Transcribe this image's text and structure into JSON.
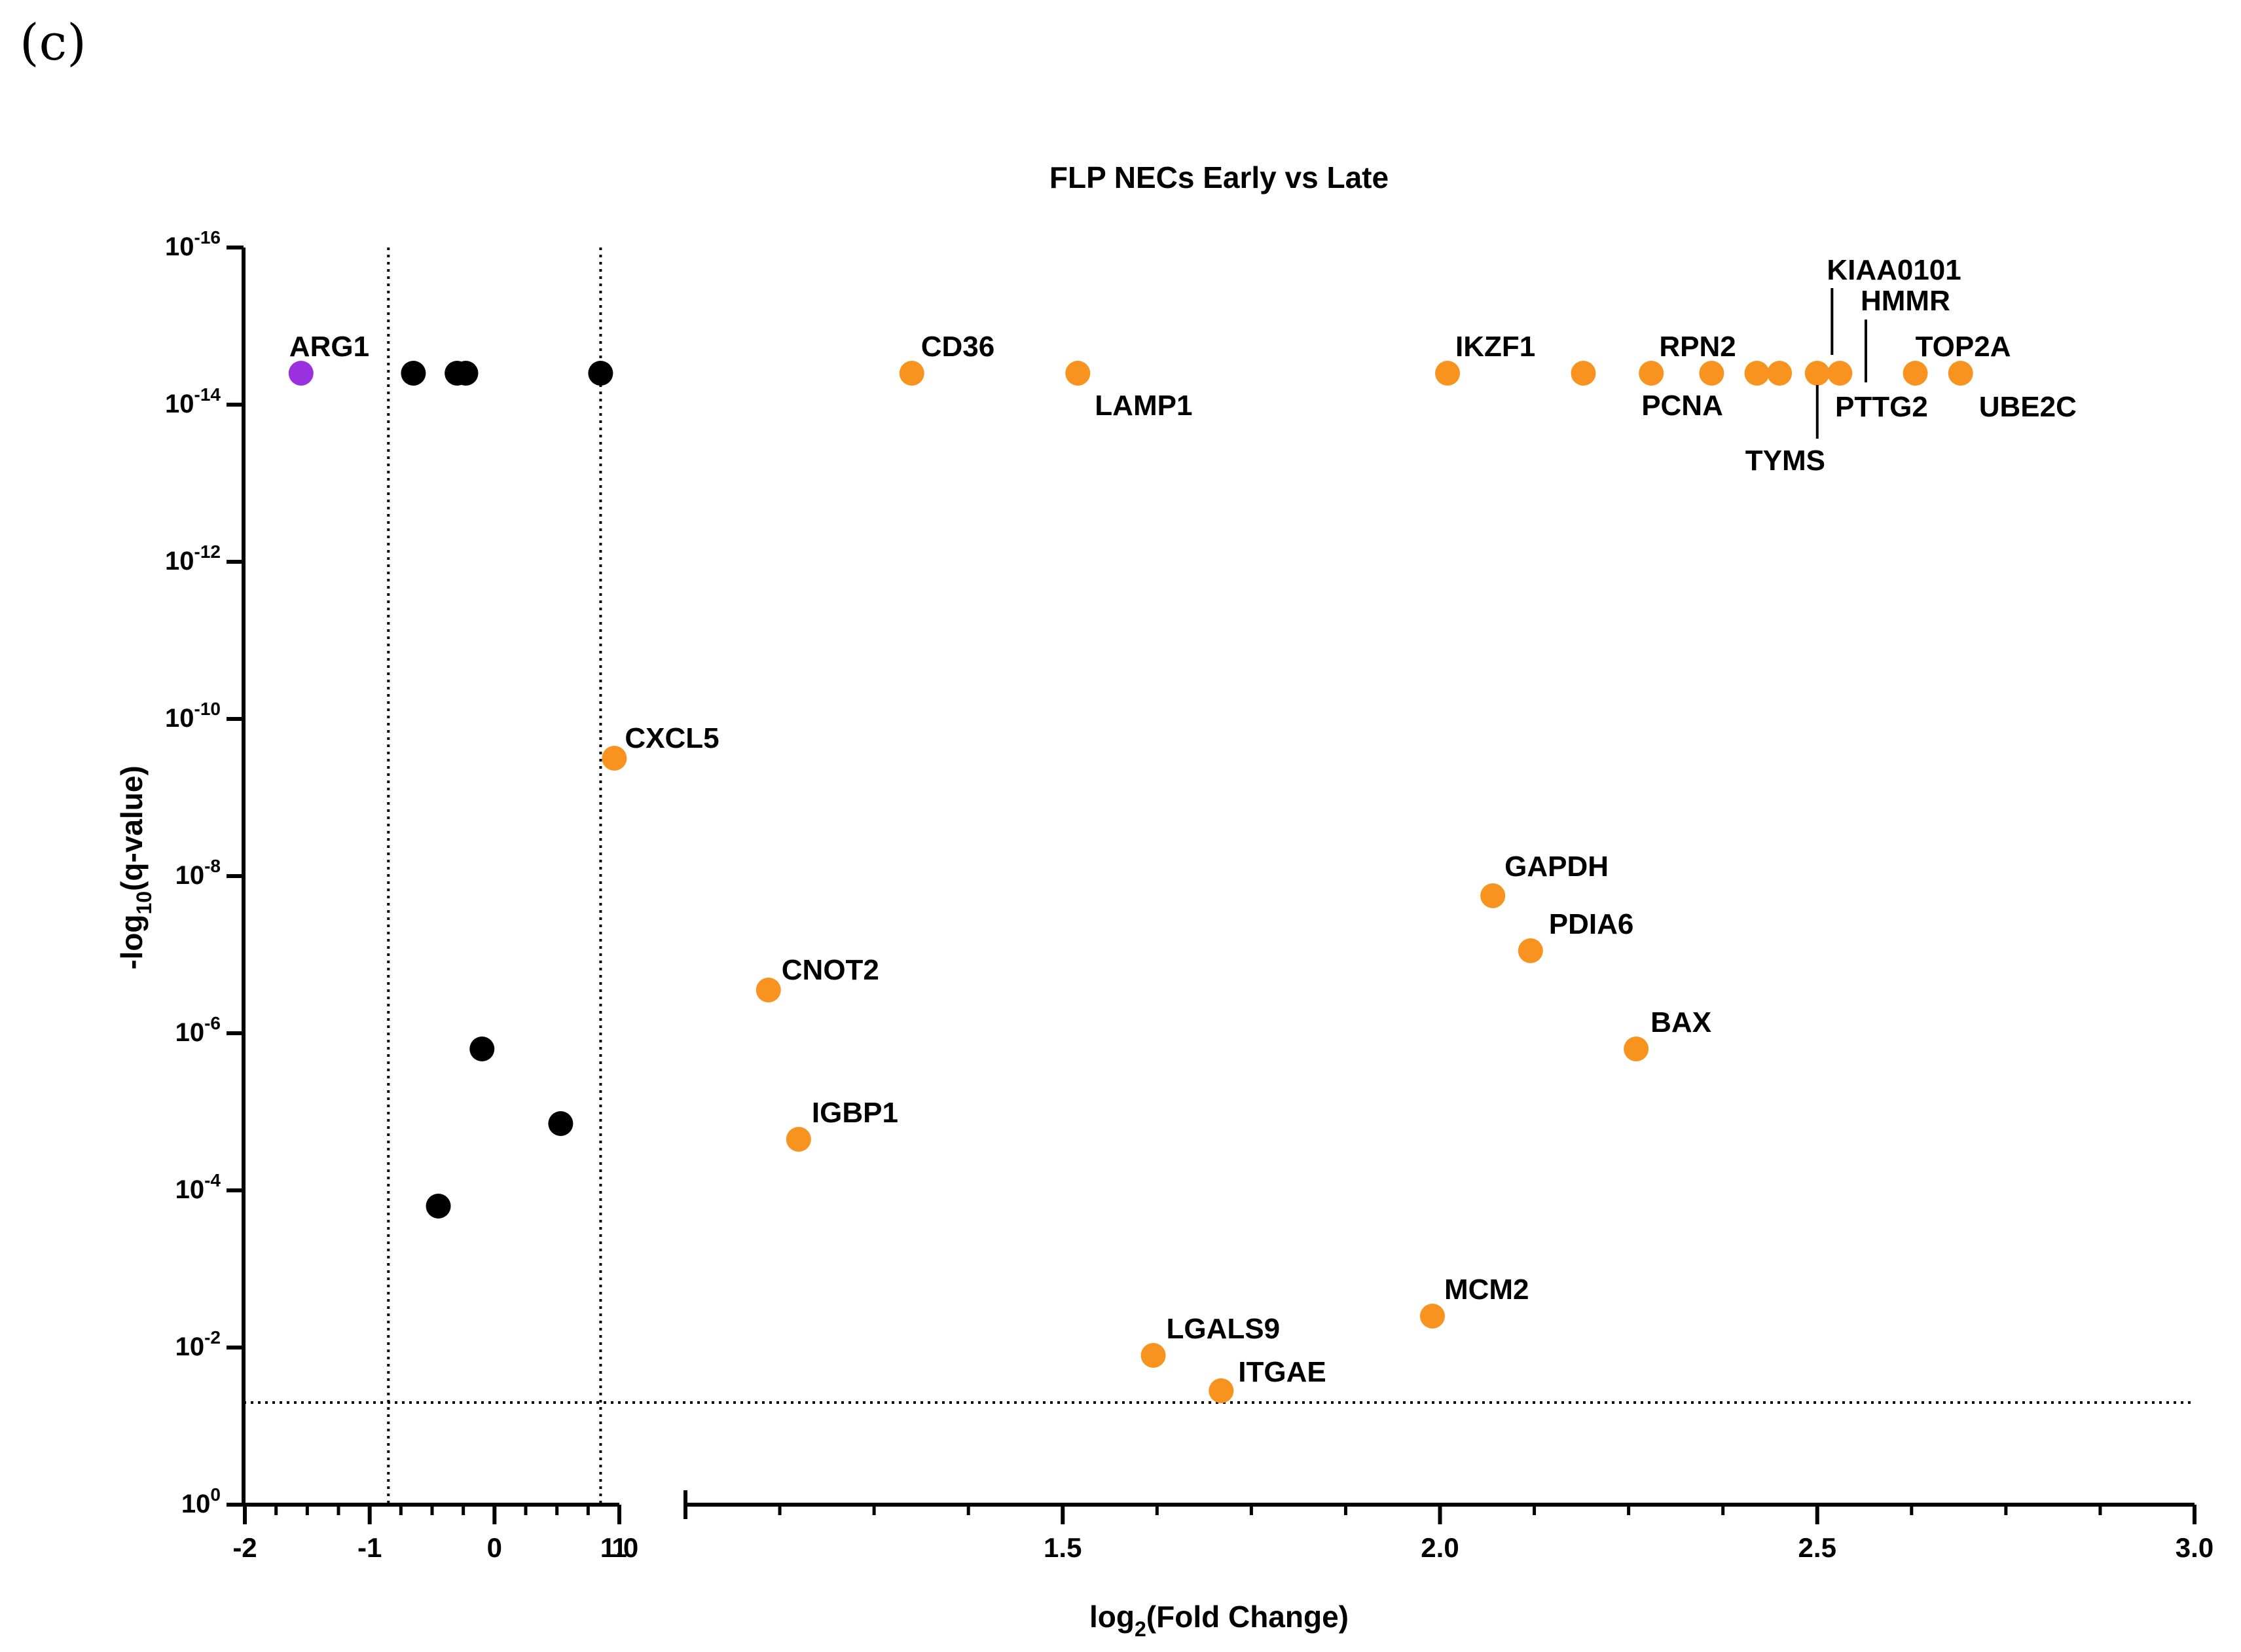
{
  "panel_label": "(c)",
  "chart_data": {
    "type": "scatter",
    "title": "FLP NECs Early vs Late",
    "xlabel": "log₂(Fold Change)",
    "xlabel_base": "log",
    "xlabel_sub": "2",
    "xlabel_rest": "(Fold Change)",
    "ylabel_base": "-log",
    "ylabel_sub": "10",
    "ylabel_rest": "(q-value)",
    "x_segments": [
      {
        "range": [
          -2,
          1
        ],
        "ticks": [
          -2,
          -1,
          0,
          1
        ],
        "tick_labels": [
          "-2",
          "-1",
          "0",
          "1"
        ],
        "minor_step": 0.25
      },
      {
        "range": [
          1.0,
          3.0
        ],
        "ticks": [
          1.0,
          1.5,
          2.0,
          2.5,
          3.0
        ],
        "tick_labels": [
          "1.0",
          "1.5",
          "2.0",
          "2.5",
          "3.0"
        ],
        "minor_step": 0.125
      }
    ],
    "ylim": [
      0,
      16
    ],
    "y_ticks": [
      0,
      2,
      4,
      6,
      8,
      10,
      12,
      14,
      16
    ],
    "y_tick_base": "10",
    "y_tick_exponents": [
      "0",
      "-2",
      "-4",
      "-6",
      "-8",
      "-10",
      "-12",
      "-14",
      "-16"
    ],
    "thresholds": {
      "x": [
        -0.85,
        0.85
      ],
      "y": 1.3
    },
    "colors": {
      "up": "#f7931e",
      "down": "#9b30e0",
      "ns": "#000000"
    },
    "points": [
      {
        "label": "ARG1",
        "x": -1.55,
        "y": 14.4,
        "group": "down"
      },
      {
        "label": "",
        "x": -0.65,
        "y": 14.4,
        "group": "ns"
      },
      {
        "label": "",
        "x": -0.3,
        "y": 14.4,
        "group": "ns"
      },
      {
        "label": "",
        "x": -0.23,
        "y": 14.4,
        "group": "ns"
      },
      {
        "label": "",
        "x": 0.85,
        "y": 14.4,
        "group": "ns"
      },
      {
        "label": "",
        "x": -0.1,
        "y": 5.8,
        "group": "ns"
      },
      {
        "label": "",
        "x": 0.53,
        "y": 4.85,
        "group": "ns"
      },
      {
        "label": "",
        "x": -0.45,
        "y": 3.8,
        "group": "ns"
      },
      {
        "label": "CD36",
        "x": 1.3,
        "y": 14.4,
        "group": "up"
      },
      {
        "label": "LAMP1",
        "x": 1.52,
        "y": 14.4,
        "group": "up"
      },
      {
        "label": "IKZF1",
        "x": 2.01,
        "y": 14.4,
        "group": "up"
      },
      {
        "label": "",
        "x": 2.19,
        "y": 14.4,
        "group": "up"
      },
      {
        "label": "PCNA",
        "x": 2.28,
        "y": 14.4,
        "group": "up"
      },
      {
        "label": "RPN2",
        "x": 2.36,
        "y": 14.4,
        "group": "up"
      },
      {
        "label": "",
        "x": 2.42,
        "y": 14.4,
        "group": "up"
      },
      {
        "label": "",
        "x": 2.45,
        "y": 14.4,
        "group": "up"
      },
      {
        "label": "TYMS",
        "x": 2.5,
        "y": 14.4,
        "group": "up"
      },
      {
        "label": "KIAA0101",
        "x": 2.53,
        "y": 14.4,
        "group": "up"
      },
      {
        "label": "TOP2A",
        "x": 2.63,
        "y": 14.4,
        "group": "up"
      },
      {
        "label": "UBE2C",
        "x": 2.69,
        "y": 14.4,
        "group": "up"
      },
      {
        "label": "CXCL5",
        "x": 0.96,
        "y": 9.5,
        "group": "up"
      },
      {
        "label": "GAPDH",
        "x": 2.07,
        "y": 7.75,
        "group": "up"
      },
      {
        "label": "PDIA6",
        "x": 2.12,
        "y": 7.05,
        "group": "up"
      },
      {
        "label": "CNOT2",
        "x": 1.11,
        "y": 6.55,
        "group": "up"
      },
      {
        "label": "BAX",
        "x": 2.26,
        "y": 5.8,
        "group": "up"
      },
      {
        "label": "IGBP1",
        "x": 1.15,
        "y": 4.65,
        "group": "up"
      },
      {
        "label": "MCM2",
        "x": 1.99,
        "y": 2.4,
        "group": "up"
      },
      {
        "label": "LGALS9",
        "x": 1.62,
        "y": 1.9,
        "group": "up"
      },
      {
        "label": "ITGAE",
        "x": 1.71,
        "y": 1.45,
        "group": "up"
      }
    ],
    "extra_labels": [
      "HMMR",
      "PTTG2"
    ]
  }
}
